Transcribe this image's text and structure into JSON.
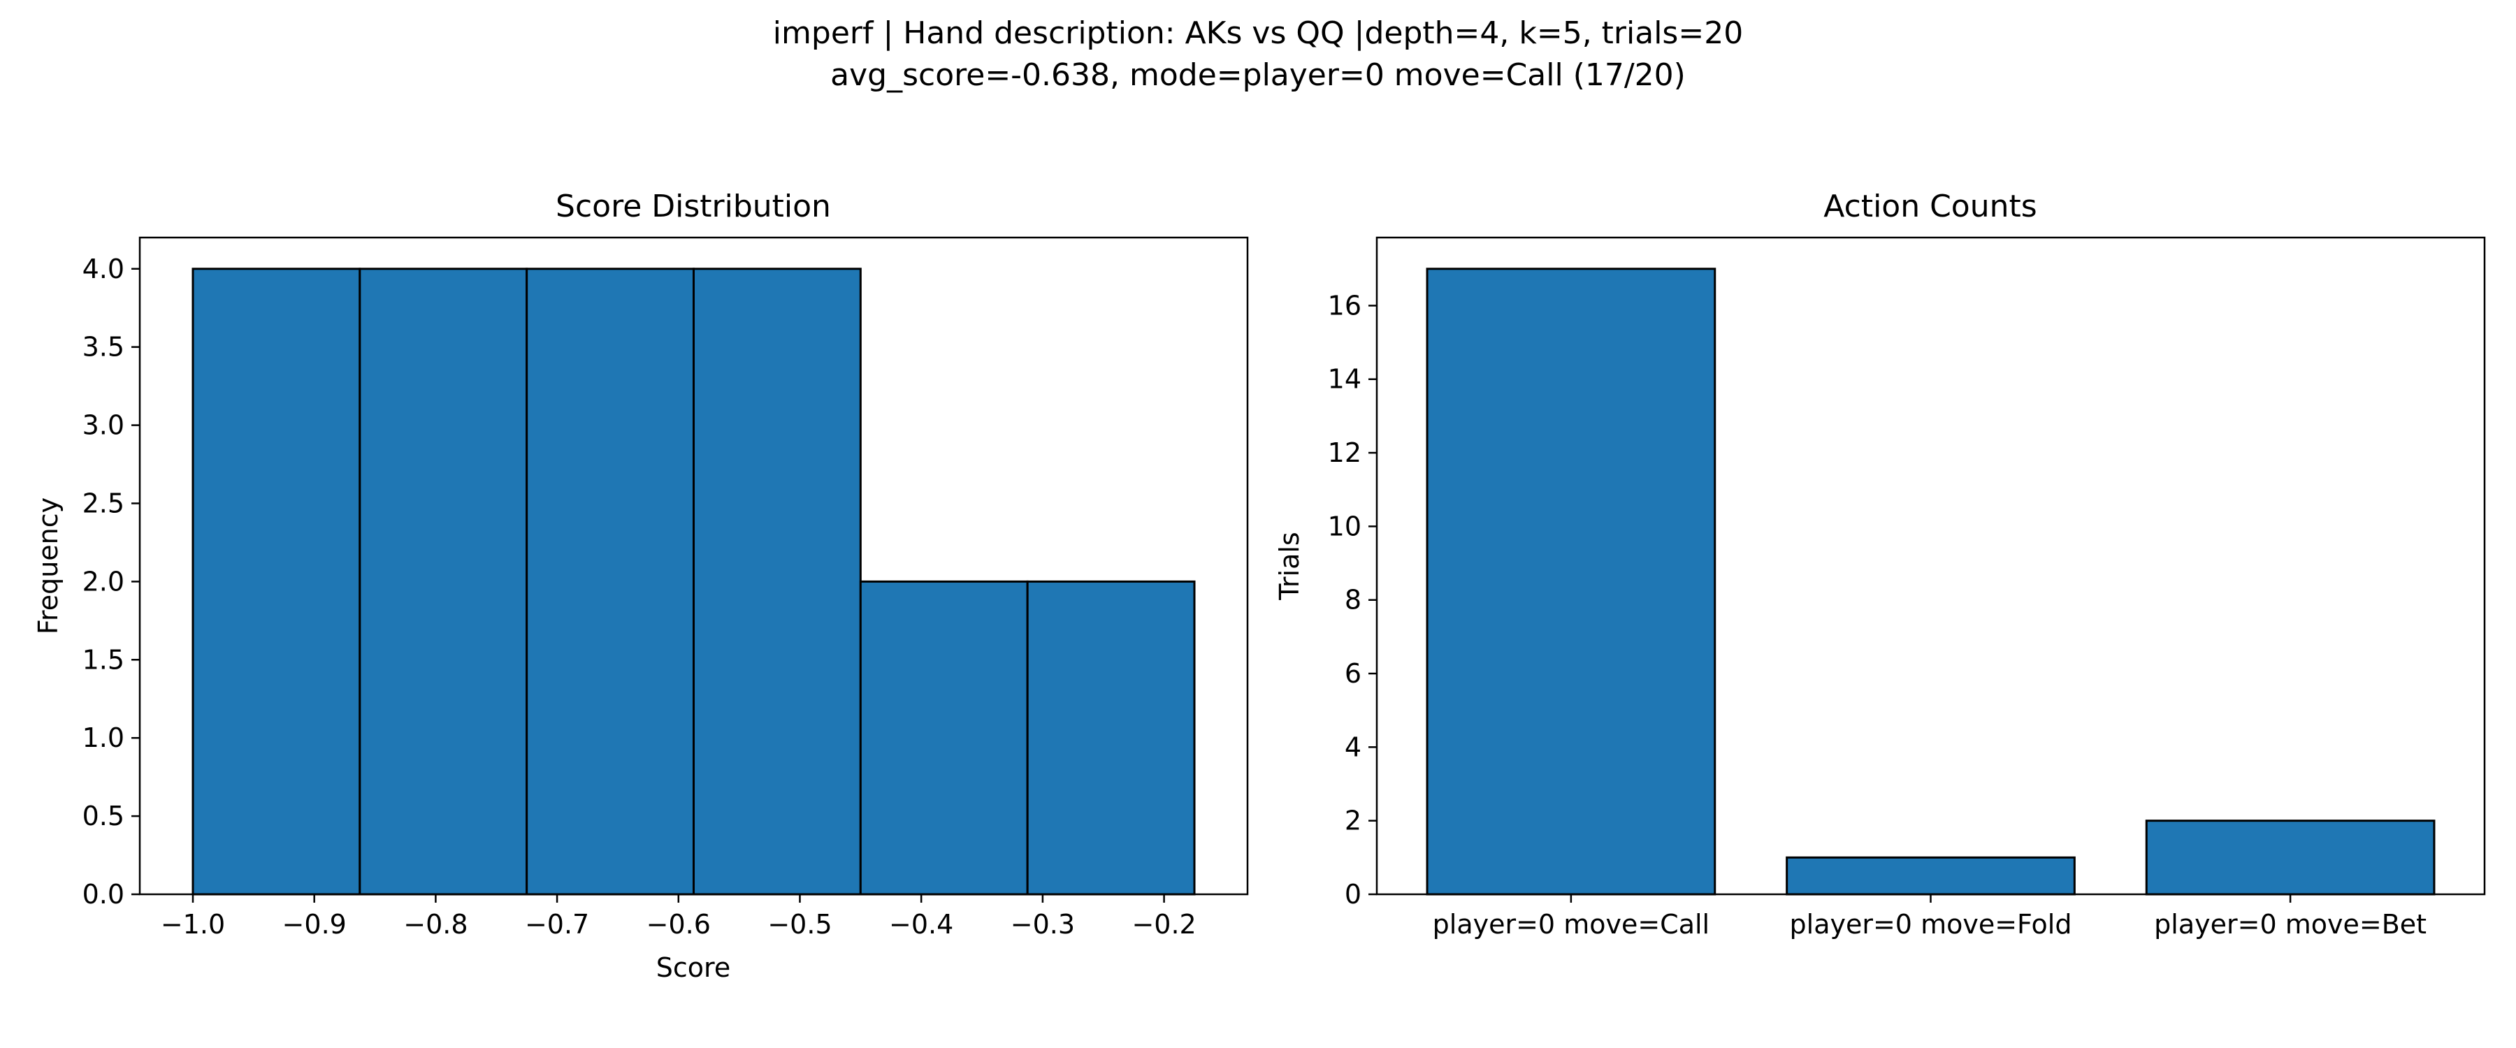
{
  "figure": {
    "title_line1": "imperf | Hand description: AKs vs QQ |depth=4, k=5, trials=20",
    "title_line2": "avg_score=-0.638, mode=player=0 move=Call (17/20)"
  },
  "colors": {
    "bar_fill": "#1f77b4",
    "bar_edge": "#000000",
    "background": "#ffffff"
  },
  "chart_data": [
    {
      "type": "bar",
      "title": "Score Distribution",
      "xlabel": "Score",
      "ylabel": "Frequency",
      "bins": [
        [
          -1.0,
          -0.8625
        ],
        [
          -0.8625,
          -0.725
        ],
        [
          -0.725,
          -0.5875
        ],
        [
          -0.5875,
          -0.45
        ],
        [
          -0.45,
          -0.3125
        ],
        [
          -0.3125,
          -0.175
        ]
      ],
      "values": [
        4,
        4,
        4,
        4,
        2,
        2
      ],
      "xlim": [
        -1.04375,
        -0.13125
      ],
      "ylim": [
        0,
        4.2
      ],
      "xticks": [
        -1.0,
        -0.9,
        -0.8,
        -0.7,
        -0.6,
        -0.5,
        -0.4,
        -0.3,
        -0.2
      ],
      "xtick_labels": [
        "−1.0",
        "−0.9",
        "−0.8",
        "−0.7",
        "−0.6",
        "−0.5",
        "−0.4",
        "−0.3",
        "−0.2"
      ],
      "yticks": [
        0,
        0.5,
        1.0,
        1.5,
        2.0,
        2.5,
        3.0,
        3.5,
        4.0
      ],
      "ytick_labels": [
        "0.0",
        "0.5",
        "1.0",
        "1.5",
        "2.0",
        "2.5",
        "3.0",
        "3.5",
        "4.0"
      ],
      "grid": false
    },
    {
      "type": "bar",
      "title": "Action Counts",
      "xlabel": "",
      "ylabel": "Trials",
      "categories": [
        "player=0 move=Call",
        "player=0 move=Fold",
        "player=0 move=Bet"
      ],
      "values": [
        17,
        1,
        2
      ],
      "ylim": [
        0,
        17.85
      ],
      "yticks": [
        0,
        2,
        4,
        6,
        8,
        10,
        12,
        14,
        16
      ],
      "ytick_labels": [
        "0",
        "2",
        "4",
        "6",
        "8",
        "10",
        "12",
        "14",
        "16"
      ],
      "grid": false
    }
  ]
}
